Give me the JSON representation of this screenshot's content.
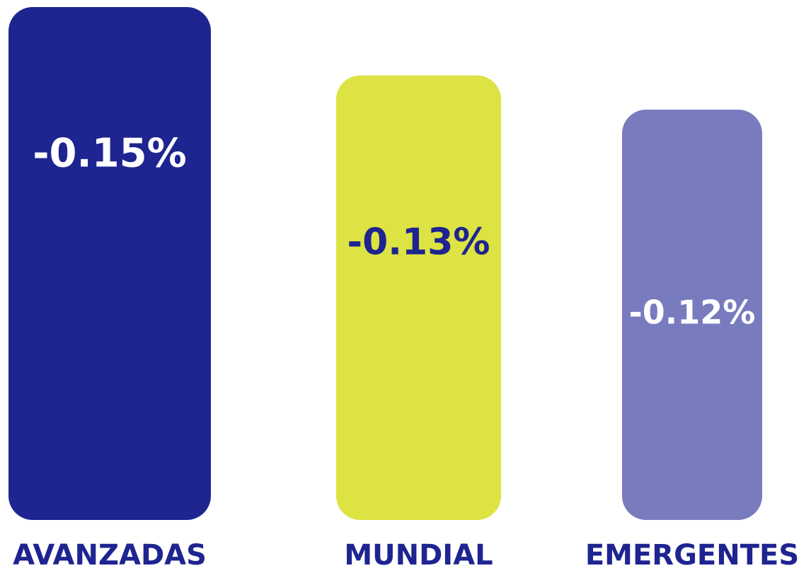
{
  "chart_data": {
    "type": "bar",
    "categories": [
      "AVANZADAS",
      "MUNDIAL",
      "EMERGENTES"
    ],
    "values": [
      -0.15,
      -0.13,
      -0.12
    ],
    "value_labels": [
      "-0.15%",
      "-0.13%",
      "-0.12%"
    ],
    "colors": [
      "#1e2490",
      "#dce342",
      "#797bbf"
    ],
    "label_colors": [
      "#ffffff",
      "#1e2490",
      "#ffffff"
    ],
    "category_color": "#1e2490"
  }
}
